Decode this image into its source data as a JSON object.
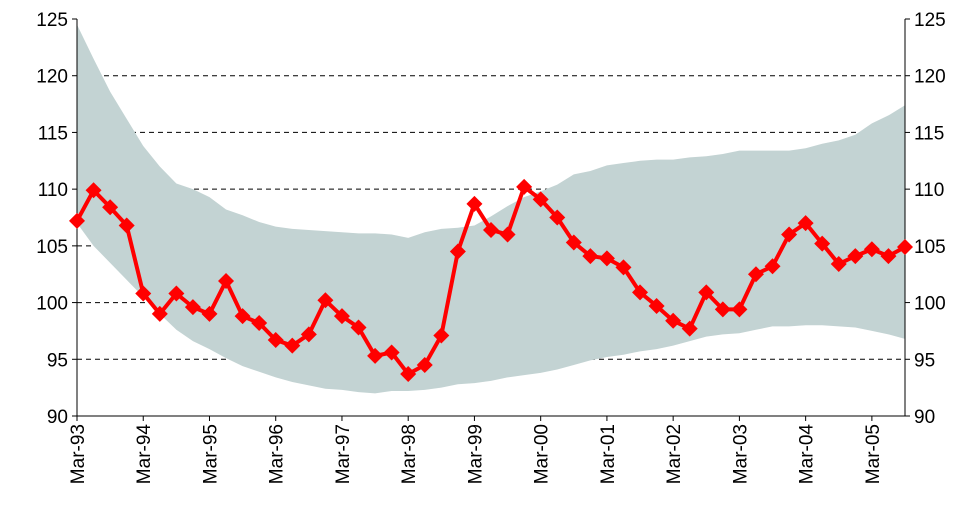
{
  "chart_data": {
    "type": "line",
    "categories": [
      "Mar-93",
      null,
      null,
      null,
      "Mar-94",
      null,
      null,
      null,
      "Mar-95",
      null,
      null,
      null,
      "Mar-96",
      null,
      null,
      null,
      "Mar-97",
      null,
      null,
      null,
      "Mar-98",
      null,
      null,
      null,
      "Mar-99",
      null,
      null,
      null,
      "Mar-00",
      null,
      null,
      null,
      "Mar-01",
      null,
      null,
      null,
      "Mar-02",
      null,
      null,
      null,
      "Mar-03",
      null,
      null,
      null,
      "Mar-04",
      null,
      null,
      null,
      "Mar-05",
      null,
      null
    ],
    "values": [
      107.2,
      109.9,
      108.4,
      106.8,
      100.8,
      99.0,
      100.8,
      99.6,
      99.0,
      101.9,
      98.8,
      98.2,
      96.7,
      96.2,
      97.2,
      100.2,
      98.8,
      97.8,
      95.3,
      95.6,
      93.7,
      94.5,
      97.1,
      104.5,
      108.7,
      106.4,
      106.0,
      110.2,
      109.1,
      107.5,
      105.3,
      104.1,
      103.9,
      103.1,
      100.9,
      99.7,
      98.4,
      97.7,
      100.9,
      99.4,
      99.4,
      102.5,
      103.2,
      106.0,
      107.0,
      105.2,
      103.4,
      104.1,
      104.7,
      104.1,
      104.9
    ],
    "color": "#ff0000",
    "band_upper": [
      124.5,
      121.5,
      118.6,
      116.2,
      113.8,
      112.0,
      110.5,
      110.0,
      109.3,
      108.2,
      107.7,
      107.1,
      106.7,
      106.5,
      106.4,
      106.3,
      106.2,
      106.1,
      106.1,
      106.0,
      105.7,
      106.2,
      106.5,
      106.6,
      106.8,
      107.6,
      108.5,
      109.3,
      109.8,
      110.4,
      111.3,
      111.6,
      112.1,
      112.3,
      112.5,
      112.6,
      112.6,
      112.8,
      112.9,
      113.1,
      113.4,
      113.4,
      113.4,
      113.4,
      113.6,
      114.0,
      114.3,
      114.8,
      115.8,
      116.5,
      117.4
    ],
    "band_lower": [
      107.0,
      105.0,
      103.5,
      102.0,
      100.5,
      99.0,
      97.6,
      96.6,
      95.9,
      95.1,
      94.4,
      93.9,
      93.4,
      93.0,
      92.7,
      92.4,
      92.3,
      92.1,
      92.0,
      92.2,
      92.2,
      92.3,
      92.5,
      92.8,
      92.9,
      93.1,
      93.4,
      93.6,
      93.8,
      94.1,
      94.5,
      94.9,
      95.2,
      95.4,
      95.7,
      95.9,
      96.2,
      96.6,
      97.0,
      97.2,
      97.3,
      97.6,
      97.9,
      97.9,
      98.0,
      98.0,
      97.9,
      97.8,
      97.5,
      97.2,
      96.8
    ],
    "band_color": "#c3d3d3",
    "ylim": [
      90,
      125
    ],
    "yticks": [
      90,
      95,
      100,
      105,
      110,
      115,
      120,
      125
    ],
    "y2lim": [
      90,
      125
    ],
    "y2ticks": [
      90,
      95,
      100,
      105,
      110,
      115,
      120,
      125
    ],
    "grid": true
  }
}
